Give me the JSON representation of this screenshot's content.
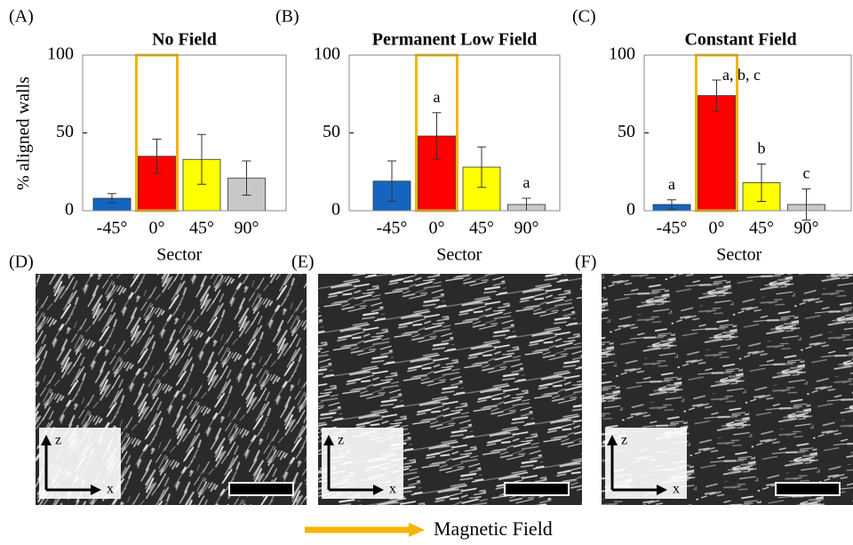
{
  "chart_data": [
    {
      "type": "bar",
      "panel": "(A)",
      "title": "No Field",
      "ylabel": "% aligned walls",
      "xlabel": "Sector",
      "categories": [
        "-45°",
        "0°",
        "45°",
        "90°"
      ],
      "values": [
        8,
        35,
        33,
        21
      ],
      "errors": [
        3,
        11,
        16,
        11
      ],
      "colors": [
        "#1565c0",
        "#ff0000",
        "#ffff00",
        "#c8c8c8"
      ],
      "annotations": [
        null,
        null,
        null,
        null
      ],
      "highlight": "0°",
      "highlight_color": "#f5b400",
      "ylim": [
        0,
        100
      ],
      "yticks": [
        0,
        50,
        100
      ]
    },
    {
      "type": "bar",
      "panel": "(B)",
      "title": "Permanent Low Field",
      "xlabel": "Sector",
      "categories": [
        "-45°",
        "0°",
        "45°",
        "90°"
      ],
      "values": [
        19,
        48,
        28,
        4
      ],
      "errors": [
        13,
        15,
        13,
        4
      ],
      "colors": [
        "#1565c0",
        "#ff0000",
        "#ffff00",
        "#c8c8c8"
      ],
      "annotations": [
        null,
        "a",
        null,
        "a"
      ],
      "highlight": "0°",
      "highlight_color": "#f5b400",
      "ylim": [
        0,
        100
      ],
      "yticks": [
        0,
        50,
        100
      ]
    },
    {
      "type": "bar",
      "panel": "(C)",
      "title": "Constant Field",
      "xlabel": "Sector",
      "categories": [
        "-45°",
        "0°",
        "45°",
        "90°"
      ],
      "values": [
        4,
        74,
        18,
        4
      ],
      "errors": [
        3,
        10,
        12,
        10
      ],
      "colors": [
        "#1565c0",
        "#ff0000",
        "#ffff00",
        "#c8c8c8"
      ],
      "annotations": [
        "a",
        "a, b, c",
        "b",
        "c"
      ],
      "highlight": "0°",
      "highlight_color": "#f5b400",
      "ylim": [
        0,
        100
      ],
      "yticks": [
        0,
        50,
        100
      ]
    }
  ],
  "images": [
    {
      "label": "(D)",
      "z": "z",
      "x": "x"
    },
    {
      "label": "(E)",
      "z": "z",
      "x": "x"
    },
    {
      "label": "(F)",
      "z": "z",
      "x": "x"
    }
  ],
  "legend": "Magnetic Field"
}
